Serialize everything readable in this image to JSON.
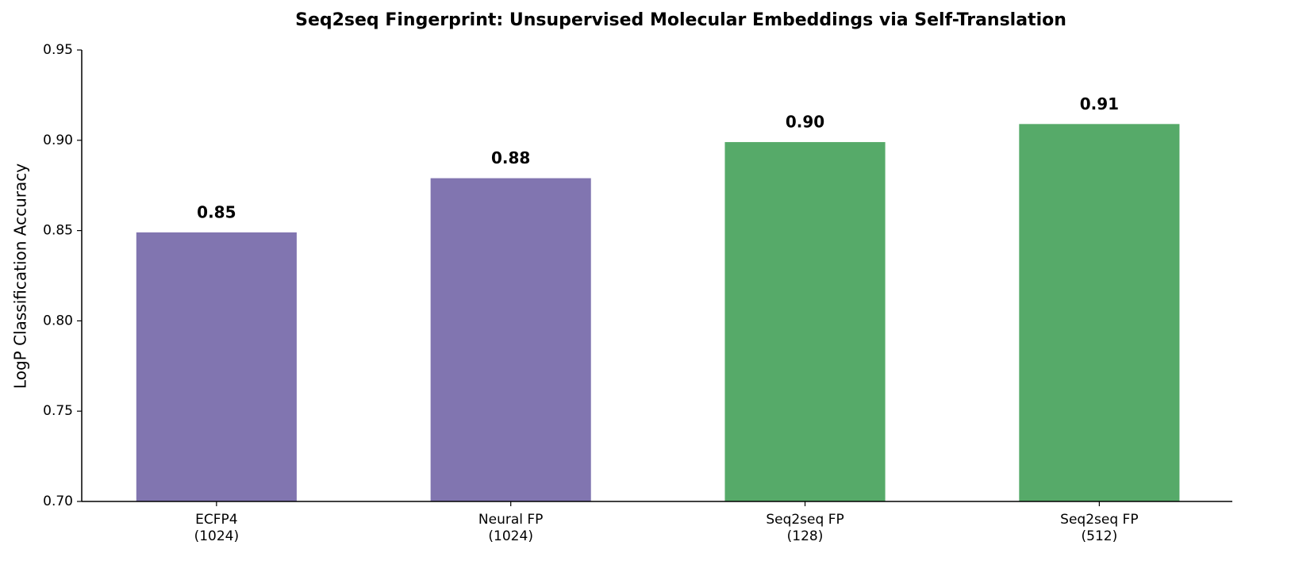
{
  "chart_data": {
    "type": "bar",
    "title": "Seq2seq Fingerprint: Unsupervised Molecular Embeddings via Self-Translation",
    "y_label": "LogP Classification Accuracy",
    "categories": [
      "ECFP4\n(1024)",
      "Neural FP\n(1024)",
      "Seq2seq FP\n(128)",
      "Seq2seq FP\n(512)"
    ],
    "values": [
      0.849,
      0.879,
      0.899,
      0.909
    ],
    "value_labels": [
      "0.85",
      "0.88",
      "0.90",
      "0.91"
    ],
    "colors": [
      "#8175b0",
      "#8175b0",
      "#56aa69",
      "#56aa69"
    ],
    "ylim": [
      0.7,
      0.95
    ],
    "yticks": [
      {
        "value": 0.7,
        "label": "0.70"
      },
      0.75,
      {
        "value": 0.8,
        "label": "0.80"
      },
      0.85,
      {
        "value": 0.9,
        "label": "0.90"
      },
      0.95
    ],
    "grid": false
  }
}
